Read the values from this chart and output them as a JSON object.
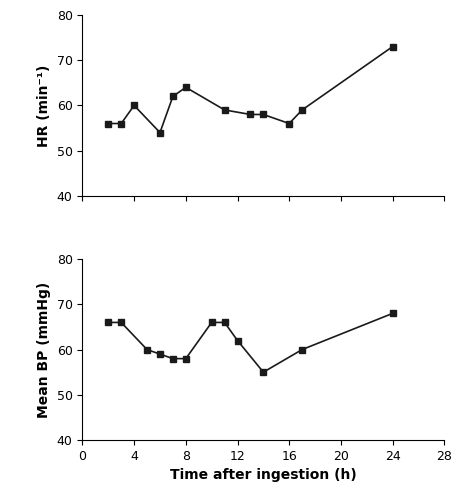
{
  "hr_x": [
    2,
    3,
    4,
    6,
    7,
    8,
    11,
    13,
    14,
    16,
    17,
    24
  ],
  "hr_y": [
    56,
    56,
    60,
    54,
    62,
    64,
    59,
    58,
    58,
    56,
    59,
    73
  ],
  "bp_x": [
    2,
    3,
    5,
    6,
    7,
    8,
    10,
    11,
    12,
    14,
    17,
    24
  ],
  "bp_y": [
    66,
    66,
    60,
    59,
    58,
    58,
    66,
    66,
    62,
    55,
    60,
    68
  ],
  "hr_ylabel": "HR (min⁻¹)",
  "bp_ylabel": "Mean BP (mmHg)",
  "xlabel": "Time after ingestion (h)",
  "xlim": [
    0,
    28
  ],
  "ylim": [
    40,
    80
  ],
  "xticks": [
    0,
    4,
    8,
    12,
    16,
    20,
    24,
    28
  ],
  "yticks": [
    40,
    50,
    60,
    70,
    80
  ],
  "marker": "s",
  "markersize": 5,
  "color": "#1a1a1a",
  "linewidth": 1.2,
  "label_fontsize": 10,
  "tick_fontsize": 9
}
